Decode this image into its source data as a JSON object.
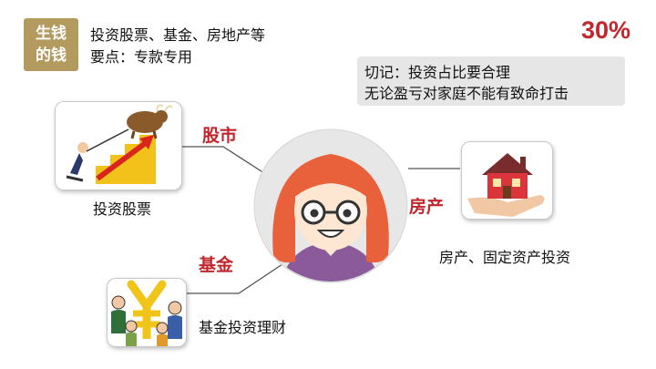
{
  "badge": {
    "line1": "生钱",
    "line2": "的钱"
  },
  "desc": {
    "line1": "投资股票、基金、房地产等",
    "line2": "要点：专款专用"
  },
  "percent": "30%",
  "note": {
    "line1": "切记：投资占比要合理",
    "line2": "无论盈亏对家庭不能有致命打击"
  },
  "branches": {
    "stock": {
      "label": "股市",
      "caption": "投资股票"
    },
    "property": {
      "label": "房产",
      "caption": "房产、固定资产投资"
    },
    "fund": {
      "label": "基金",
      "caption": "基金投资理财"
    }
  },
  "colors": {
    "accent": "#c0262c",
    "badge": "#b39a5e",
    "note_bg": "#e6e6e6",
    "hair": "#e8613a",
    "skin": "#fde6d2",
    "shirt": "#8a5a9a"
  }
}
